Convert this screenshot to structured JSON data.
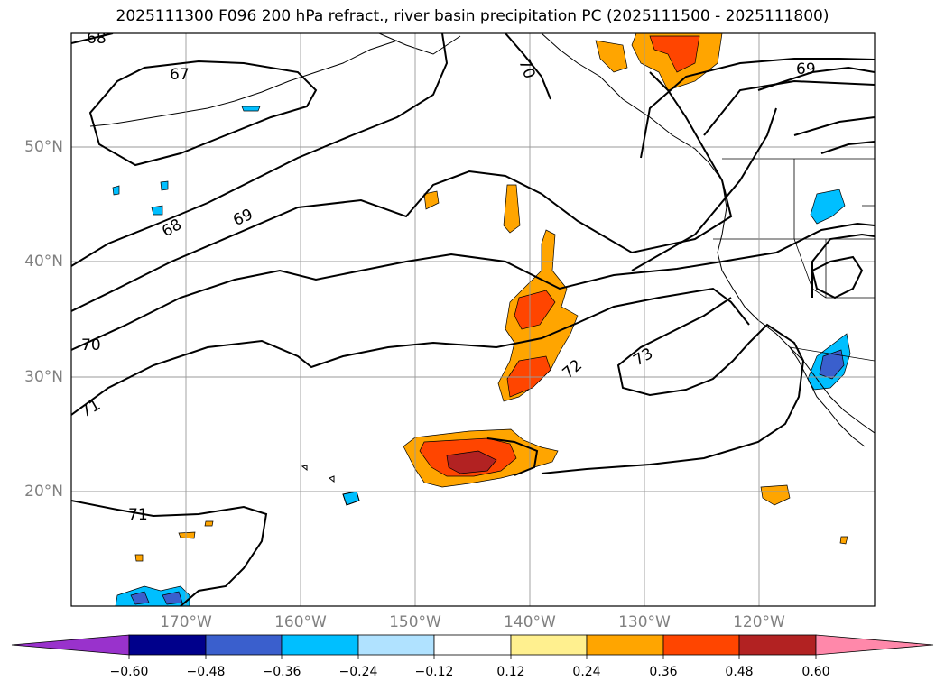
{
  "title": "2025111300 F096 200 hPa refract., river basin precipitation PC (2025111500 - 2025111800)",
  "lat_labels": [
    "50°N",
    "40°N",
    "30°N",
    "20°N"
  ],
  "lon_labels": [
    "170°W",
    "160°W",
    "150°W",
    "140°W",
    "130°W",
    "120°W"
  ],
  "contour_labels": [
    "68",
    "67",
    "70",
    "69",
    "68",
    "69",
    "70",
    "71",
    "72",
    "73",
    "71"
  ],
  "colorbar": {
    "ticks": [
      "−0.60",
      "−0.48",
      "−0.36",
      "−0.24",
      "−0.12",
      "0.12",
      "0.24",
      "0.36",
      "0.48",
      "0.60"
    ],
    "colors": [
      "#9932cc",
      "#00008b",
      "#3a5fcd",
      "#00bfff",
      "#b0e2ff",
      "#ffffff",
      "#fff08f",
      "#ffa500",
      "#ff4500",
      "#b22222",
      "#ff88aa"
    ]
  },
  "chart_data": {
    "type": "contour-map",
    "title": "2025111300 F096 200 hPa refract., river basin precipitation PC (2025111500 - 2025111800)",
    "projection": "lat-lon",
    "lon_range": [
      -178,
      -108
    ],
    "lat_range": [
      10,
      60
    ],
    "grid": true,
    "contour_levels": [
      67,
      68,
      69,
      70,
      71,
      72,
      73
    ],
    "fill_levels": [
      -0.6,
      -0.48,
      -0.36,
      -0.24,
      -0.12,
      0.12,
      0.24,
      0.36,
      0.48,
      0.6
    ]
  }
}
